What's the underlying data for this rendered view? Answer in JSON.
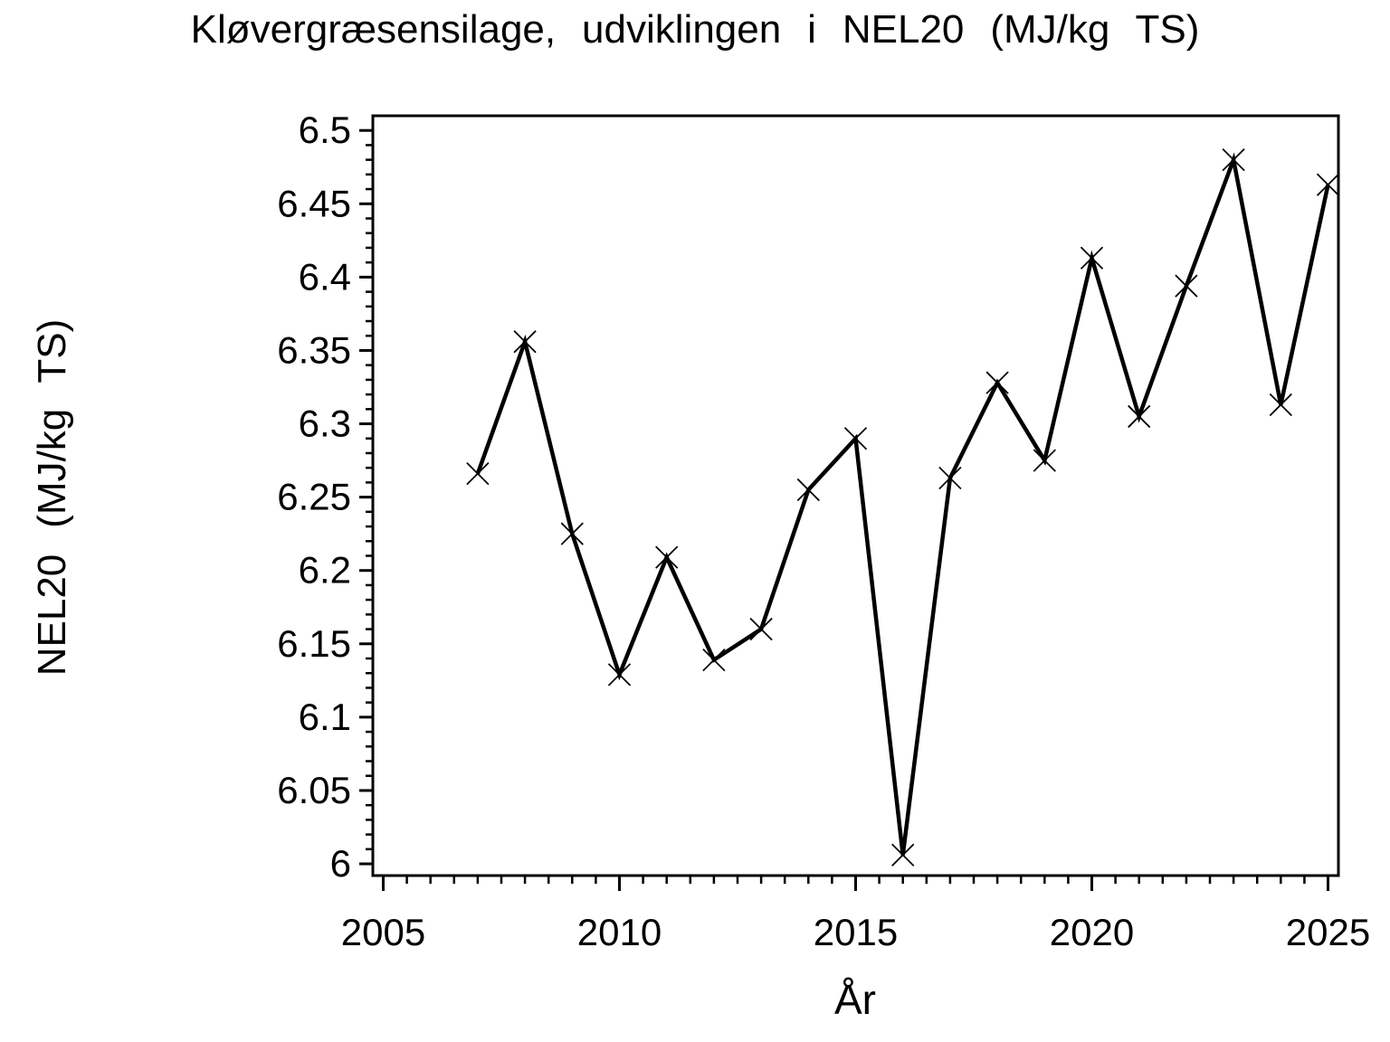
{
  "page": {
    "background_color": "#ffffff",
    "foreground_color": "#000000"
  },
  "chart_data": {
    "type": "line",
    "title": "Kløvergræsensilage, udviklingen i NEL20 (MJ/kg TS)",
    "xlabel": "År",
    "ylabel": "NEL20 (MJ/kg TS)",
    "x": [
      2007,
      2008,
      2009,
      2010,
      2011,
      2012,
      2013,
      2014,
      2015,
      2016,
      2017,
      2018,
      2019,
      2020,
      2021,
      2022,
      2023,
      2024,
      2025
    ],
    "series": [
      {
        "name": "NEL20",
        "values": [
          6.266,
          6.356,
          6.225,
          6.129,
          6.209,
          6.139,
          6.16,
          6.255,
          6.29,
          6.006,
          6.263,
          6.328,
          6.275,
          6.413,
          6.305,
          6.394,
          6.48,
          6.313,
          6.463
        ]
      }
    ],
    "xlim": [
      2004.78,
      2025.22
    ],
    "ylim": [
      5.992,
      6.51
    ],
    "x_major_ticks": [
      2005,
      2010,
      2015,
      2020,
      2025
    ],
    "x_tick_labels": [
      "2005",
      "2010",
      "2015",
      "2020",
      "2025"
    ],
    "x_minor_step": 0.5,
    "y_major_ticks": [
      6,
      6.05,
      6.1,
      6.15,
      6.2,
      6.25,
      6.3,
      6.35,
      6.4,
      6.45,
      6.5
    ],
    "y_tick_labels": [
      "6",
      "6.05",
      "6.1",
      "6.15",
      "6.2",
      "6.25",
      "6.3",
      "6.35",
      "6.4",
      "6.45",
      "6.5"
    ],
    "y_minor_step": 0.01,
    "marker": "x",
    "line_color": "#000000",
    "frame_color": "#000000",
    "grid": false,
    "legend_position": "none"
  }
}
